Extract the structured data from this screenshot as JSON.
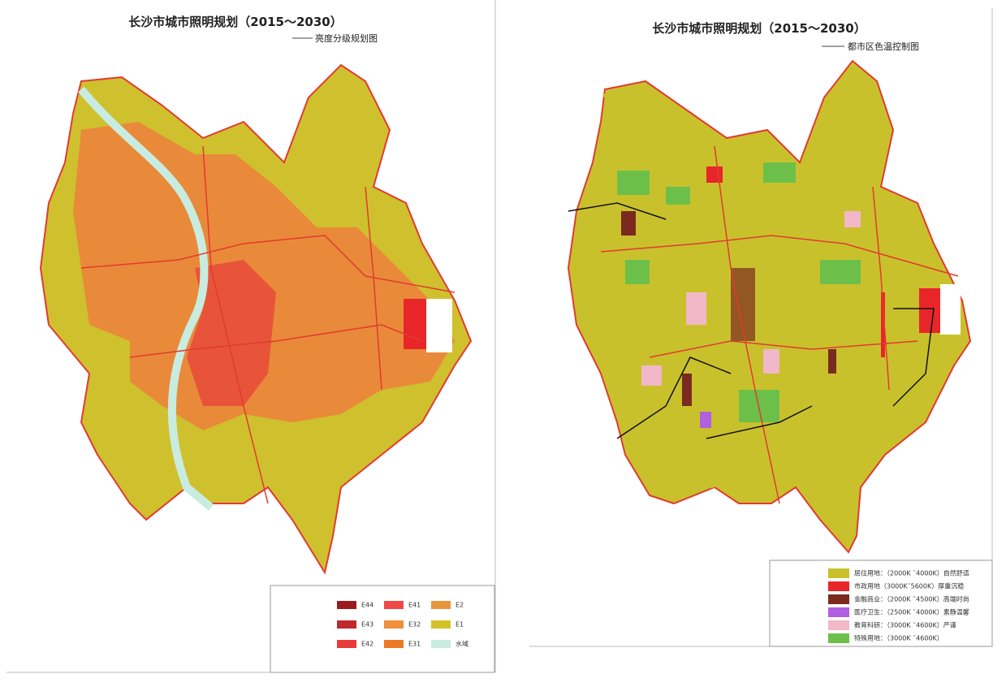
{
  "left_map": {
    "title": "长沙市城市照明规划（2015～2030）",
    "subtitle": "亮度分级规划图",
    "legend": [
      {
        "label": "E44",
        "color": "#9b1b1b"
      },
      {
        "label": "E43",
        "color": "#c0282d"
      },
      {
        "label": "E42",
        "color": "#e83a3a"
      },
      {
        "label": "E41",
        "color": "#f04848"
      },
      {
        "label": "E32",
        "color": "#f0903c"
      },
      {
        "label": "E31",
        "color": "#ec7a26"
      },
      {
        "label": "E2",
        "color": "#e8963c"
      },
      {
        "label": "E1",
        "color": "#d4c12a"
      },
      {
        "label": "水域",
        "color": "#c8ece0"
      }
    ]
  },
  "right_map": {
    "title": "长沙市城市照明规划（2015～2030）",
    "subtitle": "都市区色温控制图",
    "legend": [
      {
        "label": "居住用地：（2000K ˜4000K）自然舒适",
        "color": "#c9c12c"
      },
      {
        "label": "市政用地（3000K˜5600K）厚重沉稳",
        "color": "#e8262a"
      },
      {
        "label": "金融商业：（2000K ˜4500K）高端时尚",
        "color": "#7a2a1f"
      },
      {
        "label": "医疗卫生：（2500K ˜4000K）素静温馨",
        "color": "#b060e0"
      },
      {
        "label": "教育科研：（3000K ˜4600K）严谨",
        "color": "#f0b8c8"
      },
      {
        "label": "特殊用地：（3000K ˜4600K）",
        "color": "#6cc04a"
      }
    ]
  }
}
